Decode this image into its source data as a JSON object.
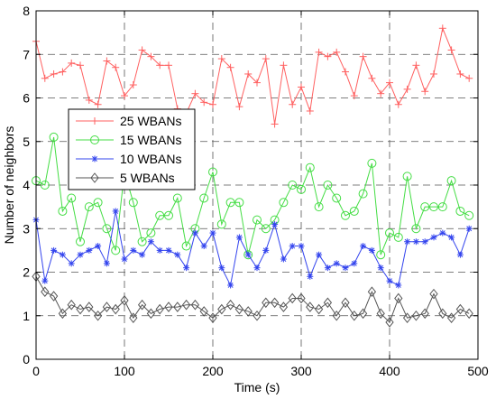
{
  "chart_data": {
    "type": "line",
    "xlabel": "Time (s)",
    "ylabel": "Number of neighbors",
    "xlim": [
      0,
      500
    ],
    "ylim": [
      0,
      8
    ],
    "xticks": [
      "0",
      "100",
      "200",
      "300",
      "400",
      "500"
    ],
    "yticks": [
      "0",
      "1",
      "2",
      "3",
      "4",
      "5",
      "6",
      "7",
      "8"
    ],
    "grid": true,
    "legend_position": "center-left",
    "x": [
      0,
      10,
      20,
      30,
      40,
      50,
      60,
      70,
      80,
      90,
      100,
      110,
      120,
      130,
      140,
      150,
      160,
      170,
      180,
      190,
      200,
      210,
      220,
      230,
      240,
      250,
      260,
      270,
      280,
      290,
      300,
      310,
      320,
      330,
      340,
      350,
      360,
      370,
      380,
      390,
      400,
      410,
      420,
      430,
      440,
      450,
      460,
      470,
      480,
      490
    ],
    "series": [
      {
        "name": "25 WBANs",
        "color": "#ff6060",
        "marker": "plus",
        "values": [
          7.3,
          6.45,
          6.55,
          6.6,
          6.8,
          6.75,
          5.95,
          5.85,
          6.85,
          6.7,
          6.05,
          6.3,
          7.1,
          6.95,
          6.75,
          6.75,
          5.75,
          5.65,
          6.1,
          5.9,
          5.85,
          6.9,
          6.7,
          5.8,
          6.55,
          6.35,
          6.9,
          5.4,
          6.75,
          5.85,
          6.25,
          5.7,
          7.05,
          6.95,
          7.05,
          6.6,
          6.05,
          6.95,
          6.45,
          6.1,
          6.35,
          5.85,
          6.2,
          6.75,
          6.15,
          6.55,
          7.6,
          7.1,
          6.55,
          6.45
        ]
      },
      {
        "name": "15 WBANs",
        "color": "#44dd44",
        "marker": "circle",
        "values": [
          4.1,
          4.0,
          5.1,
          3.4,
          3.7,
          2.7,
          3.5,
          3.6,
          3.0,
          2.5,
          4.3,
          3.6,
          2.7,
          2.9,
          3.3,
          3.3,
          3.7,
          2.6,
          3.0,
          3.7,
          4.3,
          3.1,
          3.6,
          3.6,
          2.4,
          3.2,
          3.0,
          3.2,
          3.6,
          4.0,
          3.9,
          4.4,
          3.5,
          4.0,
          3.7,
          3.3,
          3.4,
          3.8,
          4.5,
          2.4,
          2.9,
          2.8,
          4.2,
          3.0,
          3.5,
          3.5,
          3.5,
          4.1,
          3.4,
          3.3
        ]
      },
      {
        "name": "10 WBANs",
        "color": "#3344ee",
        "marker": "star",
        "values": [
          3.2,
          1.8,
          2.5,
          2.4,
          2.2,
          2.4,
          2.5,
          2.6,
          2.2,
          3.4,
          2.3,
          2.5,
          2.4,
          2.7,
          2.5,
          2.5,
          2.4,
          2.1,
          2.9,
          2.6,
          2.9,
          2.1,
          1.7,
          2.8,
          2.4,
          2.1,
          2.5,
          3.1,
          2.3,
          2.6,
          2.6,
          1.9,
          2.4,
          2.1,
          2.2,
          2.1,
          2.2,
          2.6,
          2.5,
          2.1,
          1.8,
          1.7,
          2.7,
          2.7,
          2.7,
          2.8,
          2.9,
          2.8,
          2.4,
          3.0
        ]
      },
      {
        "name": "5 WBANs",
        "color": "#555555",
        "marker": "diamond",
        "values": [
          1.9,
          1.55,
          1.45,
          1.05,
          1.25,
          1.15,
          1.2,
          1.0,
          1.2,
          1.15,
          1.35,
          0.95,
          1.25,
          1.05,
          1.15,
          1.2,
          1.2,
          1.25,
          1.25,
          1.1,
          0.95,
          1.15,
          1.25,
          1.15,
          1.1,
          1.0,
          1.3,
          1.3,
          1.2,
          1.4,
          1.4,
          1.2,
          1.15,
          1.3,
          1.0,
          1.3,
          1.0,
          1.05,
          1.55,
          1.05,
          0.85,
          1.4,
          0.95,
          1.0,
          1.05,
          1.5,
          1.05,
          0.95,
          1.15,
          1.05
        ]
      }
    ]
  }
}
